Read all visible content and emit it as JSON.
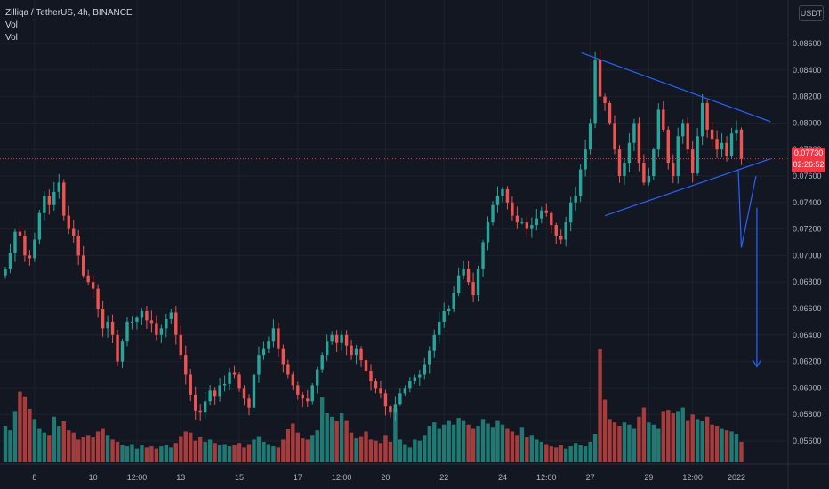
{
  "legend": {
    "symbol": "Zilliqa / TetherUS, 4h, BINANCE",
    "indicators": [
      "Vol",
      "Vol"
    ]
  },
  "currency_button": "USDT",
  "last_price": {
    "value": "0.07730",
    "countdown": "02:26:52"
  },
  "colors": {
    "up": "#26a69a",
    "down": "#ef5350",
    "vol_up": "#1f7a73",
    "vol_down": "#a83c3c",
    "pattern": "#2962ff",
    "background": "#131722"
  },
  "chart_data": {
    "type": "candlestick",
    "y_ticks": [
      "0.08600",
      "0.08400",
      "0.08200",
      "0.08000",
      "0.07800",
      "0.07600",
      "0.07400",
      "0.07200",
      "0.07000",
      "0.06800",
      "0.06600",
      "0.06400",
      "0.06200",
      "0.06000",
      "0.05800",
      "0.05600"
    ],
    "x_ticks": [
      {
        "label": "8",
        "i": 6
      },
      {
        "label": "10",
        "i": 18
      },
      {
        "label": "12:00",
        "i": 27
      },
      {
        "label": "13",
        "i": 36
      },
      {
        "label": "15",
        "i": 48
      },
      {
        "label": "17",
        "i": 60
      },
      {
        "label": "12:00",
        "i": 69
      },
      {
        "label": "20",
        "i": 78
      },
      {
        "label": "22",
        "i": 90
      },
      {
        "label": "24",
        "i": 102
      },
      {
        "label": "12:00",
        "i": 111
      },
      {
        "label": "27",
        "i": 120
      },
      {
        "label": "29",
        "i": 132
      },
      {
        "label": "12:00",
        "i": 141
      },
      {
        "label": "2022",
        "i": 150
      }
    ],
    "ylim": [
      0.0551,
      0.0879
    ],
    "last_price": 0.0773,
    "closes": [
      0.069,
      0.0702,
      0.0718,
      0.0715,
      0.07,
      0.0698,
      0.0712,
      0.0732,
      0.0745,
      0.0738,
      0.0748,
      0.0755,
      0.073,
      0.072,
      0.0715,
      0.07,
      0.0685,
      0.068,
      0.0675,
      0.066,
      0.0645,
      0.065,
      0.064,
      0.062,
      0.0635,
      0.065,
      0.065,
      0.0653,
      0.0658,
      0.0651,
      0.0649,
      0.064,
      0.0645,
      0.0652,
      0.0657,
      0.064,
      0.0625,
      0.061,
      0.0595,
      0.0583,
      0.0582,
      0.059,
      0.0598,
      0.0594,
      0.0602,
      0.0603,
      0.0612,
      0.061,
      0.06,
      0.0592,
      0.0585,
      0.061,
      0.0625,
      0.063,
      0.0635,
      0.0645,
      0.063,
      0.0618,
      0.061,
      0.0602,
      0.0595,
      0.0592,
      0.059,
      0.0602,
      0.0614,
      0.0625,
      0.0635,
      0.064,
      0.0634,
      0.064,
      0.0632,
      0.0625,
      0.063,
      0.0621,
      0.0613,
      0.0605,
      0.06,
      0.0596,
      0.0586,
      0.0582,
      0.0588,
      0.0596,
      0.06,
      0.0605,
      0.0608,
      0.061,
      0.0618,
      0.0628,
      0.064,
      0.065,
      0.0658,
      0.066,
      0.0672,
      0.0685,
      0.069,
      0.068,
      0.067,
      0.069,
      0.071,
      0.0725,
      0.0738,
      0.0745,
      0.075,
      0.074,
      0.073,
      0.0725,
      0.0725,
      0.072,
      0.0723,
      0.0728,
      0.0734,
      0.0732,
      0.0723,
      0.0715,
      0.0712,
      0.0725,
      0.074,
      0.0745,
      0.0765,
      0.078,
      0.08,
      0.0848,
      0.082,
      0.0815,
      0.08,
      0.078,
      0.076,
      0.077,
      0.0785,
      0.08,
      0.077,
      0.0755,
      0.076,
      0.078,
      0.081,
      0.0795,
      0.077,
      0.076,
      0.079,
      0.08,
      0.078,
      0.0762,
      0.079,
      0.0815,
      0.0795,
      0.0788,
      0.078,
      0.0785,
      0.0775,
      0.0792,
      0.0795,
      0.0773
    ],
    "open0": 0.0685,
    "volume_relative": [
      0.32,
      0.28,
      0.45,
      0.62,
      0.58,
      0.47,
      0.38,
      0.3,
      0.26,
      0.24,
      0.4,
      0.32,
      0.36,
      0.28,
      0.26,
      0.2,
      0.22,
      0.24,
      0.22,
      0.27,
      0.3,
      0.24,
      0.2,
      0.18,
      0.15,
      0.14,
      0.16,
      0.12,
      0.15,
      0.13,
      0.14,
      0.12,
      0.14,
      0.15,
      0.13,
      0.17,
      0.23,
      0.27,
      0.26,
      0.19,
      0.22,
      0.18,
      0.2,
      0.17,
      0.15,
      0.16,
      0.14,
      0.15,
      0.17,
      0.13,
      0.16,
      0.2,
      0.23,
      0.18,
      0.16,
      0.14,
      0.13,
      0.2,
      0.29,
      0.34,
      0.26,
      0.21,
      0.2,
      0.24,
      0.28,
      0.57,
      0.43,
      0.4,
      0.36,
      0.43,
      0.37,
      0.26,
      0.21,
      0.23,
      0.27,
      0.2,
      0.19,
      0.17,
      0.24,
      0.18,
      0.47,
      0.2,
      0.16,
      0.13,
      0.2,
      0.19,
      0.24,
      0.32,
      0.35,
      0.3,
      0.33,
      0.37,
      0.33,
      0.39,
      0.37,
      0.33,
      0.3,
      0.32,
      0.38,
      0.34,
      0.31,
      0.37,
      0.33,
      0.3,
      0.27,
      0.24,
      0.31,
      0.22,
      0.24,
      0.2,
      0.18,
      0.16,
      0.14,
      0.13,
      0.15,
      0.12,
      0.14,
      0.17,
      0.15,
      0.14,
      0.18,
      0.25,
      1.0,
      0.55,
      0.38,
      0.35,
      0.32,
      0.35,
      0.33,
      0.3,
      0.4,
      0.48,
      0.35,
      0.33,
      0.3,
      0.45,
      0.46,
      0.43,
      0.45,
      0.48,
      0.37,
      0.42,
      0.38,
      0.36,
      0.4,
      0.33,
      0.32,
      0.3,
      0.28,
      0.27,
      0.25,
      0.18
    ]
  }
}
